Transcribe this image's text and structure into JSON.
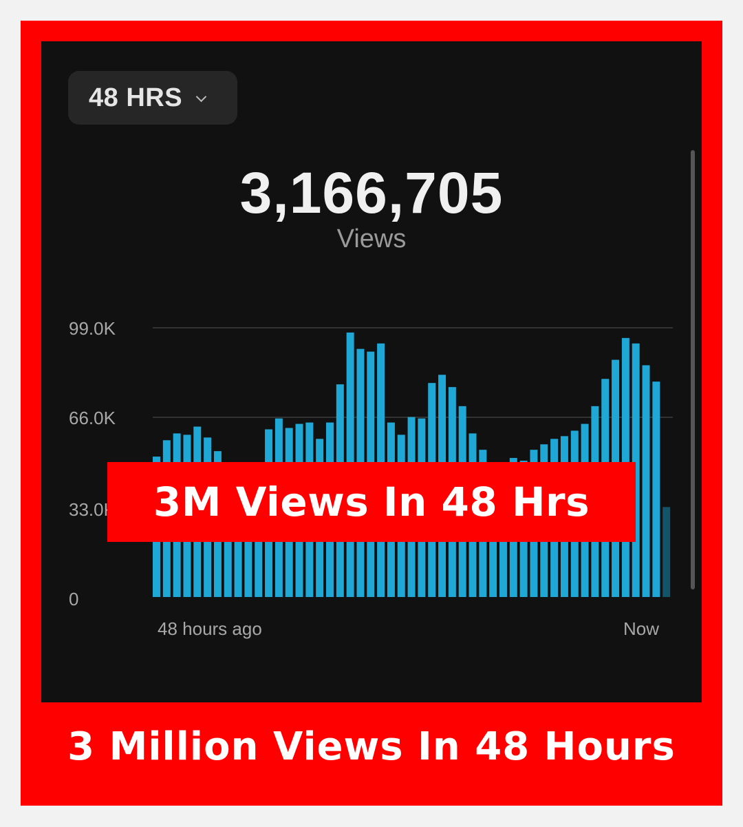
{
  "period_selector": {
    "label": "48 HRS",
    "icon": "chevron-down-icon"
  },
  "summary": {
    "total": "3,166,705",
    "label": "Views"
  },
  "banner": {
    "text": "3M Views In 48 Hrs"
  },
  "caption": {
    "text": "3 Million Views In 48 Hours"
  },
  "colors": {
    "frame": "#ff0000",
    "panel": "#111111",
    "bar": "#1fa8d6",
    "bar_partial": "#13546b"
  },
  "chart_data": {
    "type": "bar",
    "title": "",
    "xlabel": "",
    "ylabel": "",
    "x_labels": [
      "48 hours ago",
      "Now"
    ],
    "y_tick_labels": [
      "99.0K",
      "66.0K",
      "33.0K",
      "0"
    ],
    "y_ticks": [
      99000,
      66000,
      33000,
      0
    ],
    "ylim": [
      0,
      99000
    ],
    "grid": true,
    "values": [
      51500,
      57500,
      60000,
      59500,
      62500,
      58500,
      53500,
      48000,
      46000,
      45000,
      47000,
      61500,
      65500,
      62000,
      63500,
      64000,
      58000,
      64000,
      78000,
      97000,
      91000,
      90000,
      93000,
      64000,
      59500,
      66000,
      65500,
      78500,
      81500,
      77000,
      70000,
      60000,
      54000,
      49000,
      47000,
      51000,
      50000,
      54000,
      56000,
      58000,
      59000,
      61000,
      63500,
      70000,
      80000,
      87000,
      95000,
      93000,
      85000,
      79000,
      33000
    ],
    "last_bar_partial": true
  }
}
